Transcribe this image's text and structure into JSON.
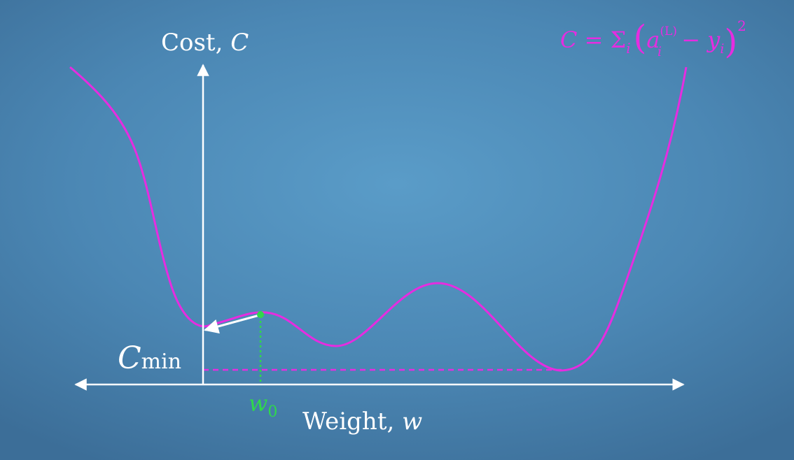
{
  "y_axis": {
    "label_text": "Cost, ",
    "label_var": "C"
  },
  "x_axis": {
    "label_text": "Weight, ",
    "label_var": "w"
  },
  "cmin": {
    "main": "C",
    "sub": "min"
  },
  "w0": {
    "main": "w",
    "sub": "0"
  },
  "formula": {
    "lhs": "C = ",
    "sum": "Σ",
    "sum_sub": "i",
    "open_paren": "(",
    "a": "a",
    "a_sup": "(L)",
    "a_sub": "i",
    "minus": " − ",
    "y": "y",
    "y_sub": "i",
    "close_paren": ")",
    "power": "2"
  },
  "colors": {
    "curve": "#e62ce0",
    "axes": "#ffffff",
    "marker": "#2fd94a",
    "background": "#4b87b4"
  }
}
